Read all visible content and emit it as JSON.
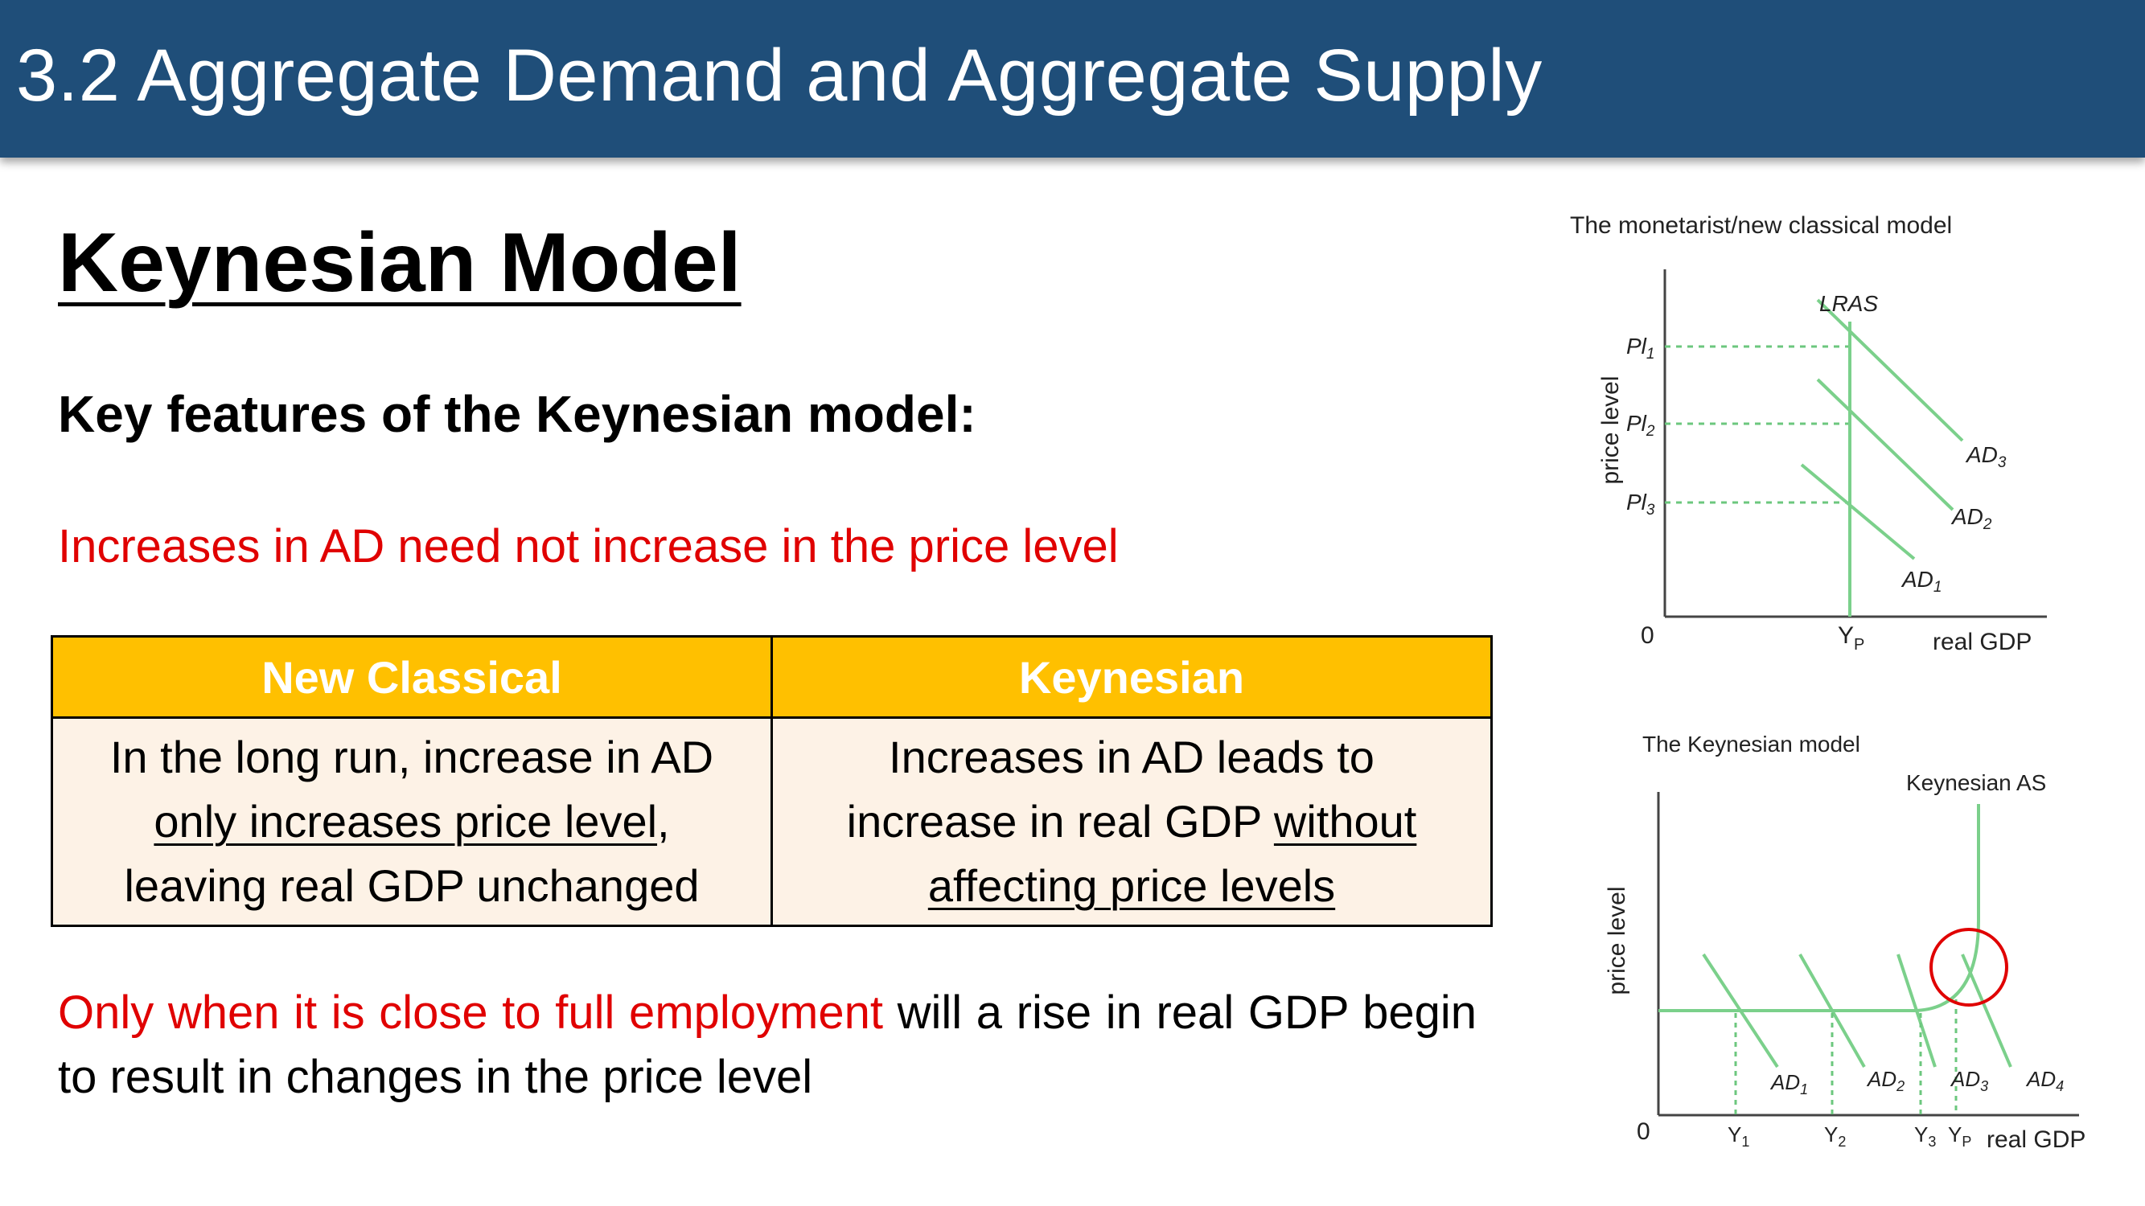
{
  "title": "3.2 Aggregate Demand and Aggregate Supply",
  "heading": "Keynesian Model",
  "subheading": "Key features of the Keynesian model:",
  "key_point": "Increases in AD need not increase in the price level",
  "table": {
    "headers": [
      "New Classical",
      "Keynesian"
    ],
    "left": {
      "t1": "In the long run, increase in AD",
      "u1": "only increases price level",
      "t2": ",",
      "t3": "leaving real GDP unchanged"
    },
    "right": {
      "t1": "Increases in AD leads to",
      "t2": "increase in real GDP ",
      "u1": "without",
      "u2": "affecting price levels"
    }
  },
  "conclusion": {
    "red": "Only when it is close to full employment",
    "rest": " will a rise in real GDP begin to result in changes in the price level"
  },
  "colors": {
    "banner": "#1f4e79",
    "header_fill": "#ffc000",
    "cell_fill": "#fdf2e6",
    "highlight": "#e00000",
    "curve": "#7bd08b"
  },
  "diagram_top": {
    "title": "The monetarist/new classical model",
    "ylabel": "price level",
    "xlabel": "real GDP",
    "origin": "0",
    "lras_label": "LRAS",
    "yp_label": "Y",
    "yp_sub": "P",
    "price_labels": [
      {
        "main": "Pl",
        "sub": "1"
      },
      {
        "main": "Pl",
        "sub": "2"
      },
      {
        "main": "Pl",
        "sub": "3"
      }
    ],
    "ad_labels": [
      {
        "main": "AD",
        "sub": "3"
      },
      {
        "main": "AD",
        "sub": "2"
      },
      {
        "main": "AD",
        "sub": "1"
      }
    ]
  },
  "diagram_bottom": {
    "title": "The Keynesian model",
    "ylabel": "price level",
    "xlabel": "real GDP",
    "origin": "0",
    "as_label": "Keynesian AS",
    "ad_labels": [
      {
        "main": "AD",
        "sub": "1"
      },
      {
        "main": "AD",
        "sub": "2"
      },
      {
        "main": "AD",
        "sub": "3"
      },
      {
        "main": "AD",
        "sub": "4"
      }
    ],
    "y_labels": [
      {
        "main": "Y",
        "sub": "1"
      },
      {
        "main": "Y",
        "sub": "2"
      },
      {
        "main": "Y",
        "sub": "3"
      }
    ],
    "yp_label": "Y",
    "yp_sub": "P"
  }
}
